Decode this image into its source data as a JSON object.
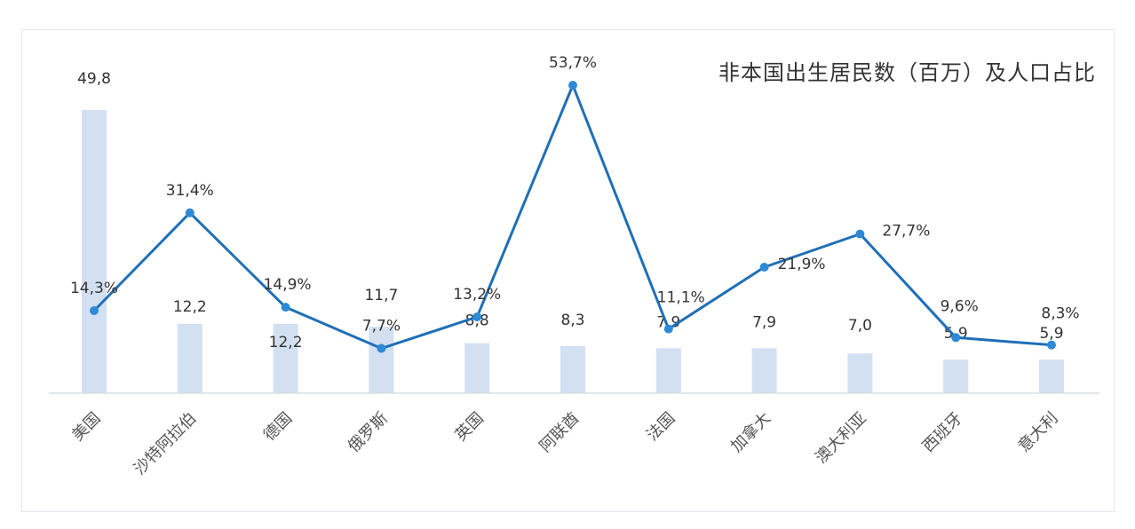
{
  "chart_data": {
    "type": "bar+line",
    "title": "非本国出生居民数（百万）及人口占比",
    "categories": [
      "美国",
      "沙特阿拉伯",
      "德国",
      "俄罗斯",
      "英国",
      "阿联酋",
      "法国",
      "加拿大",
      "澳大利亚",
      "西班牙",
      "意大利"
    ],
    "series": [
      {
        "kind": "bar",
        "values": [
          49.8,
          12.2,
          12.2,
          11.7,
          8.8,
          8.3,
          7.9,
          7.9,
          7.0,
          5.9,
          5.9
        ],
        "labels": [
          "49,8",
          "12,2",
          "12,2",
          "11,7",
          "8,8",
          "8,3",
          "7,9",
          "7,9",
          "7,0",
          "5,9",
          "5,9"
        ]
      },
      {
        "kind": "line",
        "values": [
          14.3,
          31.4,
          14.9,
          7.7,
          13.2,
          53.7,
          11.1,
          21.9,
          27.7,
          9.6,
          8.3
        ],
        "labels": [
          "14,3%",
          "31,4%",
          "14,9%",
          "7,7%",
          "13,2%",
          "53,7%",
          "11,1%",
          "21,9%",
          "27,7%",
          "9,6%",
          "8,3%"
        ]
      }
    ],
    "colors": {
      "bar": "#d3e0f2",
      "line": "#1f6fb7",
      "marker": "#2e8ad6",
      "axis": "#d9dde3"
    }
  }
}
